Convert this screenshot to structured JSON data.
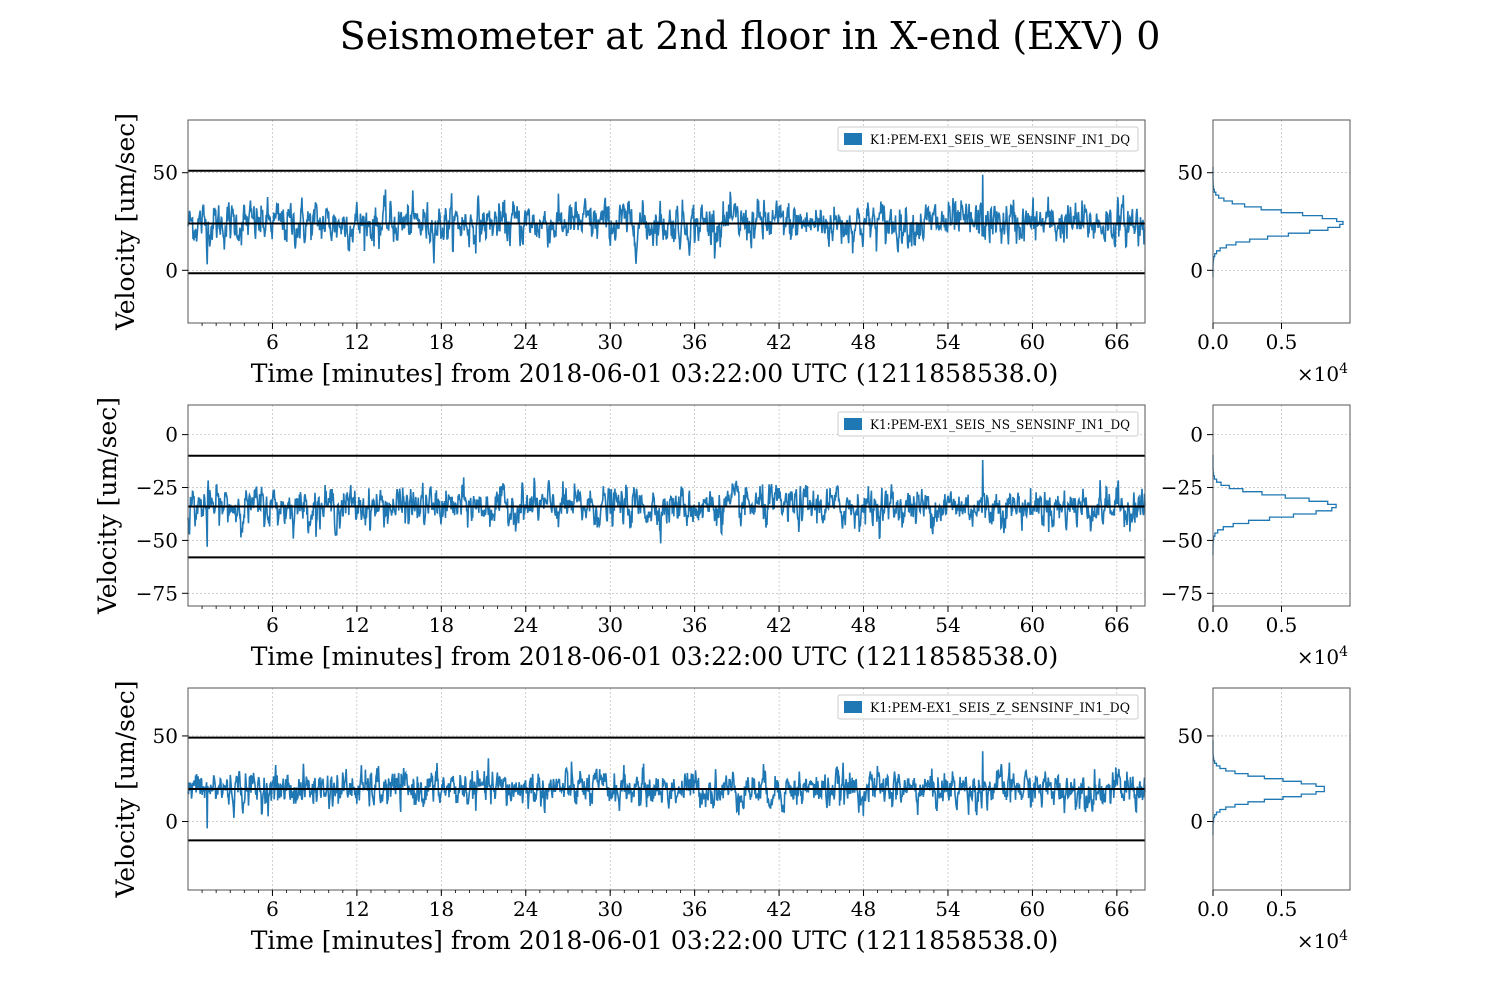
{
  "title": "Seismometer at 2nd floor in X-end (EXV) 0",
  "colors": {
    "series": "#1f77b4",
    "threshold_line": "#000000",
    "grid": "#b0b0b0"
  },
  "chart_data": [
    {
      "type": "line",
      "series": [
        {
          "name": "K1:PEM-EX1_SEIS_WE_SENSINF_IN1_DQ"
        }
      ],
      "mean": 24,
      "std": 5.5,
      "sample_min": 3,
      "sample_max": 49,
      "thresholds": [
        51,
        24,
        -1.5
      ],
      "xlabel": "Time [minutes] from 2018-06-01 03:22:00 UTC (1211858538.0)",
      "ylabel": "Velocity [um/sec]",
      "xlim": [
        0,
        68
      ],
      "ylim": [
        -27,
        77
      ],
      "xticks": [
        "6",
        "12",
        "18",
        "24",
        "30",
        "36",
        "42",
        "48",
        "54",
        "60",
        "66"
      ],
      "yticks": [
        "0",
        "50"
      ],
      "legend": "top-right",
      "grid": true,
      "histogram": {
        "orientation": "horizontal",
        "mean": 24,
        "std": 5.5,
        "peak_count": 9500,
        "xlim": [
          0,
          10000
        ],
        "xticks": [
          "0.0",
          "0.5"
        ],
        "scale_label": "×10",
        "scale_exp": "4",
        "yticks": [
          "0",
          "50"
        ]
      }
    },
    {
      "type": "line",
      "series": [
        {
          "name": "K1:PEM-EX1_SEIS_NS_SENSINF_IN1_DQ"
        }
      ],
      "mean": -34,
      "std": 4.6,
      "sample_min": -53,
      "sample_max": -12,
      "thresholds": [
        -10,
        -34,
        -58
      ],
      "xlabel": "Time [minutes] from 2018-06-01 03:22:00 UTC (1211858538.0)",
      "ylabel": "Velocity [um/sec]",
      "xlim": [
        0,
        68
      ],
      "ylim": [
        -81,
        14
      ],
      "xticks": [
        "6",
        "12",
        "18",
        "24",
        "30",
        "36",
        "42",
        "48",
        "54",
        "60",
        "66"
      ],
      "yticks": [
        "0",
        "−25",
        "−50",
        "−75"
      ],
      "legend": "top-right",
      "grid": true,
      "histogram": {
        "orientation": "horizontal",
        "mean": -34,
        "std": 4.6,
        "peak_count": 9000,
        "xlim": [
          0,
          10000
        ],
        "xticks": [
          "0.0",
          "0.5"
        ],
        "scale_label": "×10",
        "scale_exp": "4",
        "yticks": [
          "0",
          "−25",
          "−50",
          "−75"
        ]
      }
    },
    {
      "type": "line",
      "series": [
        {
          "name": "K1:PEM-EX1_SEIS_Z_SENSINF_IN1_DQ"
        }
      ],
      "mean": 19,
      "std": 5.4,
      "sample_min": -4,
      "sample_max": 41,
      "thresholds": [
        49,
        19,
        -11
      ],
      "xlabel": "Time [minutes] from 2018-06-01 03:22:00 UTC (1211858538.0)",
      "ylabel": "Velocity [um/sec]",
      "xlim": [
        0,
        68
      ],
      "ylim": [
        -40,
        78
      ],
      "xticks": [
        "6",
        "12",
        "18",
        "24",
        "30",
        "36",
        "42",
        "48",
        "54",
        "60",
        "66"
      ],
      "yticks": [
        "0",
        "50"
      ],
      "legend": "top-right",
      "grid": true,
      "histogram": {
        "orientation": "horizontal",
        "mean": 19,
        "std": 5.4,
        "peak_count": 8200,
        "xlim": [
          0,
          10000
        ],
        "xticks": [
          "0.0",
          "0.5"
        ],
        "scale_label": "×10",
        "scale_exp": "4",
        "yticks": [
          "0",
          "50"
        ]
      }
    }
  ]
}
